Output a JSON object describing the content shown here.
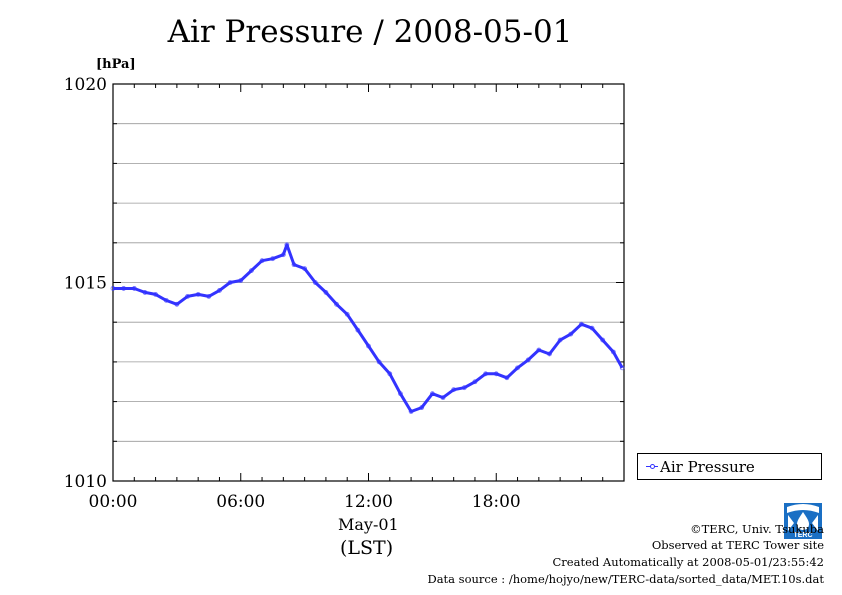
{
  "chart_data": {
    "type": "line",
    "title": "Air Pressure / 2008-05-01",
    "ylabel": "[hPa]",
    "xlabel_date": "May-01",
    "xlabel_unit": "(LST)",
    "ylim": [
      1010,
      1020
    ],
    "xlim": [
      "00:00",
      "24:00"
    ],
    "yticks": [
      "1010",
      "1015",
      "1020"
    ],
    "xticks": [
      "00:00",
      "06:00",
      "12:00",
      "18:00"
    ],
    "grid": true,
    "legend_position": "right",
    "series": [
      {
        "name": "Air Pressure",
        "color": "#3333ff",
        "points": [
          [
            "00:00",
            1014.85
          ],
          [
            "00:30",
            1014.85
          ],
          [
            "01:00",
            1014.85
          ],
          [
            "01:30",
            1014.75
          ],
          [
            "02:00",
            1014.7
          ],
          [
            "02:30",
            1014.55
          ],
          [
            "03:00",
            1014.45
          ],
          [
            "03:30",
            1014.65
          ],
          [
            "04:00",
            1014.7
          ],
          [
            "04:30",
            1014.65
          ],
          [
            "05:00",
            1014.8
          ],
          [
            "05:30",
            1015.0
          ],
          [
            "06:00",
            1015.05
          ],
          [
            "06:30",
            1015.3
          ],
          [
            "07:00",
            1015.55
          ],
          [
            "07:30",
            1015.6
          ],
          [
            "08:00",
            1015.7
          ],
          [
            "08:10",
            1015.95
          ],
          [
            "08:30",
            1015.45
          ],
          [
            "09:00",
            1015.35
          ],
          [
            "09:30",
            1015.0
          ],
          [
            "10:00",
            1014.75
          ],
          [
            "10:30",
            1014.45
          ],
          [
            "11:00",
            1014.2
          ],
          [
            "11:30",
            1013.8
          ],
          [
            "12:00",
            1013.4
          ],
          [
            "12:30",
            1013.0
          ],
          [
            "13:00",
            1012.7
          ],
          [
            "13:30",
            1012.2
          ],
          [
            "14:00",
            1011.75
          ],
          [
            "14:30",
            1011.85
          ],
          [
            "15:00",
            1012.2
          ],
          [
            "15:30",
            1012.1
          ],
          [
            "16:00",
            1012.3
          ],
          [
            "16:30",
            1012.35
          ],
          [
            "17:00",
            1012.5
          ],
          [
            "17:30",
            1012.7
          ],
          [
            "18:00",
            1012.7
          ],
          [
            "18:30",
            1012.6
          ],
          [
            "19:00",
            1012.85
          ],
          [
            "19:30",
            1013.05
          ],
          [
            "20:00",
            1013.3
          ],
          [
            "20:30",
            1013.2
          ],
          [
            "21:00",
            1013.55
          ],
          [
            "21:30",
            1013.7
          ],
          [
            "22:00",
            1013.95
          ],
          [
            "22:30",
            1013.85
          ],
          [
            "23:00",
            1013.55
          ],
          [
            "23:30",
            1013.25
          ],
          [
            "23:55",
            1012.85
          ]
        ]
      }
    ]
  },
  "footer": {
    "credit": "©TERC, Univ. Tsukuba",
    "observed": "Observed at TERC Tower site",
    "created": "Created Automatically at 2008-05-01/23:55:42",
    "source": "Data source : /home/hojyo/new/TERC-data/sorted_data/MET.10s.dat"
  },
  "logo": {
    "icon": "terc-logo-icon",
    "text": "TERC",
    "color": "#1a6fc4"
  }
}
